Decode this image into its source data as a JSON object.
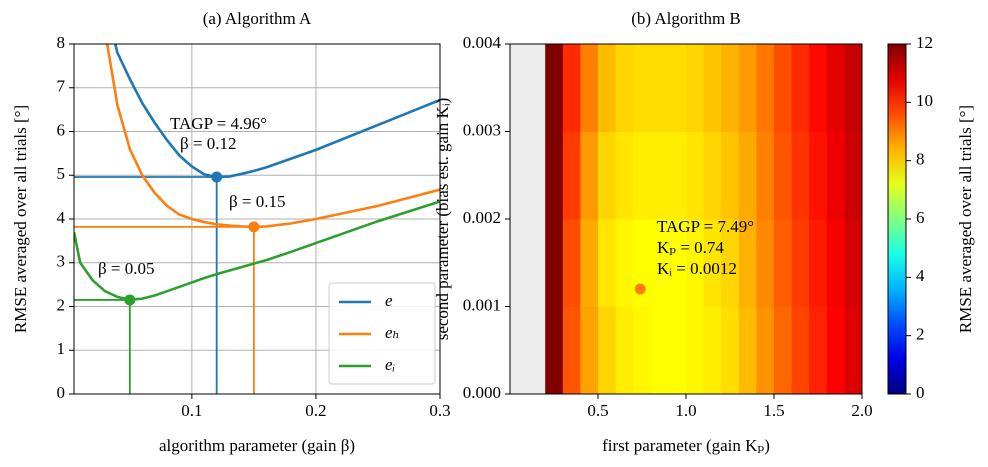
{
  "chart_data": [
    {
      "type": "line",
      "title": "(a) Algorithm A",
      "x_label": "algorithm parameter (gain β)",
      "y_label": "RMSE averaged over all trials [°]",
      "x": [
        0.005,
        0.01,
        0.02,
        0.03,
        0.04,
        0.05,
        0.06,
        0.07,
        0.08,
        0.09,
        0.1,
        0.11,
        0.12,
        0.13,
        0.14,
        0.15,
        0.16,
        0.18,
        0.2,
        0.25,
        0.3
      ],
      "series": [
        {
          "name": "e",
          "color": "#1f77b4",
          "values": [
            null,
            null,
            null,
            9.0,
            7.8,
            7.2,
            6.65,
            6.2,
            5.8,
            5.45,
            5.2,
            5.02,
            4.96,
            4.97,
            5.03,
            5.1,
            5.18,
            5.38,
            5.58,
            6.15,
            6.72
          ]
        },
        {
          "name": "eₕ",
          "color": "#ff7f0e",
          "values": [
            null,
            null,
            null,
            8.3,
            6.6,
            5.6,
            5.0,
            4.6,
            4.3,
            4.1,
            4.0,
            3.93,
            3.88,
            3.85,
            3.83,
            3.82,
            3.83,
            3.9,
            4.0,
            4.3,
            4.67
          ]
        },
        {
          "name": "eᵢ",
          "color": "#2ca02c",
          "values": [
            3.7,
            3.0,
            2.6,
            2.35,
            2.22,
            2.15,
            2.18,
            2.25,
            2.35,
            2.45,
            2.55,
            2.65,
            2.74,
            2.82,
            2.9,
            2.98,
            3.06,
            3.25,
            3.45,
            3.95,
            4.4
          ]
        }
      ],
      "minima": {
        "x": [
          0.12,
          0.15,
          0.05
        ],
        "y": [
          4.96,
          3.82,
          2.15
        ]
      },
      "annotations": [
        "TAGP = 4.96°",
        "β = 0.12",
        "β = 0.15",
        "β = 0.05"
      ],
      "xlim": [
        0.005,
        0.3
      ],
      "ylim": [
        0,
        8
      ],
      "xticks": [
        0.1,
        0.2,
        0.3
      ],
      "yticks": [
        0,
        1,
        2,
        3,
        4,
        5,
        6,
        7,
        8
      ],
      "grid": true,
      "legend": "lower right"
    },
    {
      "type": "heatmap",
      "title": "(b) Algorithm B",
      "x_label": "first parameter (gain Kₚ)",
      "y_label": "second parameter (bias est. gain Kᵢ)",
      "colorbar_label": "RMSE averaged over all trials [°]",
      "x": [
        0.05,
        0.15,
        0.25,
        0.35,
        0.45,
        0.55,
        0.65,
        0.75,
        0.85,
        0.95,
        1.05,
        1.15,
        1.25,
        1.35,
        1.45,
        1.55,
        1.65,
        1.75,
        1.85,
        1.95
      ],
      "y": [
        0.0005,
        0.0015,
        0.0025,
        0.0035
      ],
      "z": [
        [
          null,
          null,
          12,
          9.5,
          8.6,
          8.0,
          7.7,
          7.6,
          7.5,
          7.5,
          7.6,
          7.7,
          7.9,
          8.3,
          8.8,
          9.3,
          9.7,
          10.1,
          10.5,
          10.9
        ],
        [
          null,
          null,
          12,
          9.6,
          8.5,
          7.8,
          7.6,
          7.5,
          7.5,
          7.5,
          7.6,
          7.8,
          8.0,
          8.4,
          8.9,
          9.4,
          9.8,
          10.2,
          10.6,
          11.0
        ],
        [
          null,
          null,
          12,
          9.8,
          8.7,
          8.0,
          7.8,
          7.7,
          7.7,
          7.7,
          7.8,
          8.0,
          8.2,
          8.5,
          9.0,
          9.5,
          9.9,
          10.3,
          10.7,
          11.1
        ],
        [
          null,
          null,
          12,
          10.0,
          9.0,
          8.3,
          8.0,
          7.9,
          7.9,
          7.9,
          8.0,
          8.2,
          8.4,
          8.7,
          9.1,
          9.6,
          10.0,
          10.4,
          10.8,
          11.2
        ]
      ],
      "point": {
        "x": 0.74,
        "y": 0.0012,
        "color": "#ff7f0e"
      },
      "annotations": [
        "TAGP = 7.49°",
        "Kₚ = 0.74",
        "Kᵢ = 0.0012"
      ],
      "xlim": [
        0.0,
        2.0
      ],
      "ylim": [
        0,
        0.004
      ],
      "xticks": [
        0.5,
        {
          "value": 1,
          "label": "1.0"
        },
        1.5,
        {
          "value": 2,
          "label": "2.0"
        }
      ],
      "yticks": [
        {
          "value": 0,
          "label": "0.000"
        },
        {
          "value": 0.001,
          "label": "0.001"
        },
        {
          "value": 0.002,
          "label": "0.002"
        },
        {
          "value": 0.003,
          "label": "0.003"
        },
        {
          "value": 0.004,
          "label": "0.004"
        }
      ],
      "clim": [
        0,
        12
      ],
      "cticks": [
        0,
        2,
        4,
        6,
        8,
        10,
        12
      ],
      "colormap": "jet"
    }
  ]
}
